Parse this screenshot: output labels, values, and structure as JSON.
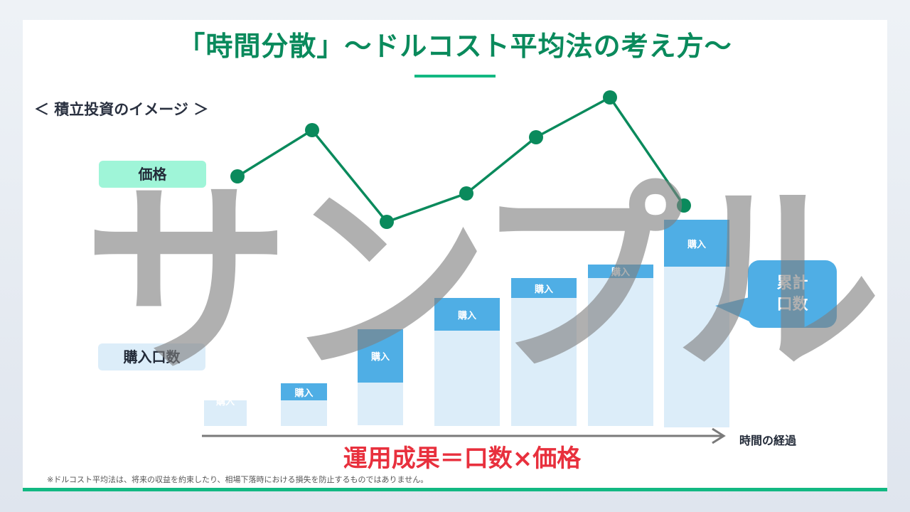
{
  "title": "「時間分散」〜ドルコスト平均法の考え方〜",
  "subtitle": "＜ 積立投資のイメージ ＞",
  "price_label": "価格",
  "quantity_label": "購入口数",
  "axis_label": "時間の経過",
  "bubble": {
    "line1": "累計",
    "line2": "口数"
  },
  "formula": "運用成果＝口数×価格",
  "note": "※ドルコスト平均法は、将来の収益を約束したり、相場下落時における損失を防止するものではありません。",
  "watermark": "サンプル",
  "bars": [
    {
      "label": "購入"
    },
    {
      "label": "購入"
    },
    {
      "label": "購入"
    },
    {
      "label": "購入"
    },
    {
      "label": "購入"
    },
    {
      "label": "購入"
    },
    {
      "label": "購入"
    }
  ],
  "colors": {
    "title": "#0a8a5c",
    "line": "#0a8a5c",
    "purchase": "#4faee5",
    "cumulative": "#dcedf9",
    "formula": "#e8303d",
    "accent": "#12b882"
  }
}
